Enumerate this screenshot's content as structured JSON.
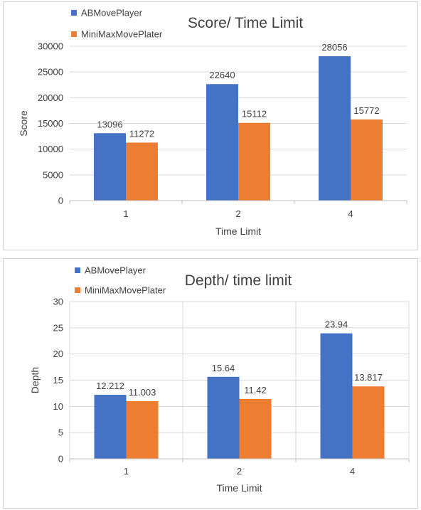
{
  "chart_data": [
    {
      "type": "bar",
      "title": "Score/ Time Limit",
      "xlabel": "Time Limit",
      "ylabel": "Score",
      "categories": [
        "1",
        "2",
        "4"
      ],
      "ylim": [
        0,
        30000
      ],
      "yticks": [
        0,
        5000,
        10000,
        15000,
        20000,
        25000,
        30000
      ],
      "grid": "horizontal",
      "legend_position": "top-left",
      "series": [
        {
          "name": "ABMovePlayer",
          "color": "#4472c4",
          "values": [
            13096,
            22640,
            28056
          ],
          "labels": [
            "13096",
            "22640",
            "28056"
          ]
        },
        {
          "name": "MiniMaxMovePlater",
          "color": "#ed7d31",
          "values": [
            11272,
            15112,
            15772
          ],
          "labels": [
            "11272",
            "15112",
            "15772"
          ]
        }
      ]
    },
    {
      "type": "bar",
      "title": "Depth/ time limit",
      "xlabel": "Time Limit",
      "ylabel": "Depth",
      "categories": [
        "1",
        "2",
        "4"
      ],
      "ylim": [
        0,
        30
      ],
      "yticks": [
        0,
        5,
        10,
        15,
        20,
        25,
        30
      ],
      "grid": "horizontal and vertical",
      "legend_position": "top-left",
      "series": [
        {
          "name": "ABMovePlayer",
          "color": "#4472c4",
          "values": [
            12.212,
            15.64,
            23.94
          ],
          "labels": [
            "12.212",
            "15.64",
            "23.94"
          ]
        },
        {
          "name": "MiniMaxMovePlater",
          "color": "#ed7d31",
          "values": [
            11.003,
            11.42,
            13.817
          ],
          "labels": [
            "11.003",
            "11.42",
            "13.817"
          ]
        }
      ]
    }
  ]
}
